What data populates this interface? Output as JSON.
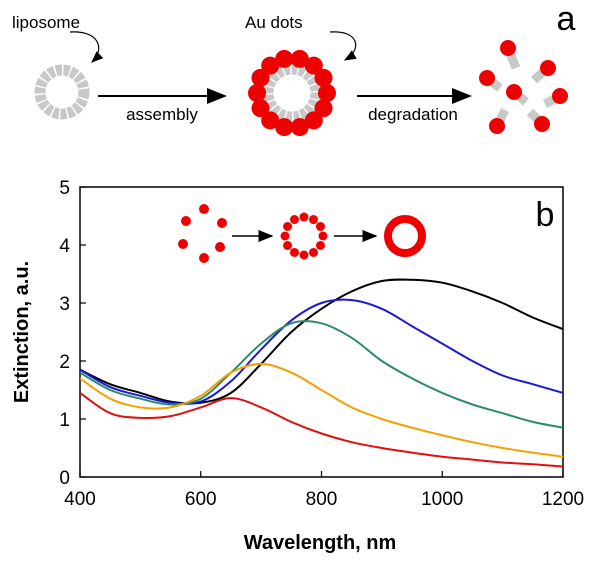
{
  "panel_a": {
    "label": "a",
    "liposome": "liposome",
    "au_dots": "Au dots",
    "assembly": "assembly",
    "degradation": "degradation"
  },
  "chart_data": {
    "type": "line",
    "label": "b",
    "x_label": "Wavelength, nm",
    "y_label": "Extinction, a.u.",
    "x": [
      400,
      450,
      500,
      550,
      600,
      650,
      700,
      750,
      800,
      850,
      900,
      950,
      1000,
      1050,
      1100,
      1150,
      1200
    ],
    "xlim": [
      400,
      1200
    ],
    "xticks": [
      400,
      600,
      800,
      1000,
      1200
    ],
    "ylim": [
      0,
      5
    ],
    "yticks": [
      0,
      1,
      2,
      3,
      4,
      5
    ],
    "grid": false,
    "series": [
      {
        "color": "#000000",
        "values": [
          1.85,
          1.6,
          1.45,
          1.3,
          1.28,
          1.45,
          1.95,
          2.5,
          2.9,
          3.2,
          3.38,
          3.4,
          3.35,
          3.2,
          3.0,
          2.75,
          2.55
        ]
      },
      {
        "color": "#1a1ad6",
        "values": [
          1.85,
          1.55,
          1.4,
          1.28,
          1.3,
          1.65,
          2.2,
          2.7,
          3.0,
          3.05,
          2.9,
          2.6,
          2.3,
          2.0,
          1.75,
          1.6,
          1.45
        ]
      },
      {
        "color": "#2e8b6a",
        "values": [
          1.8,
          1.5,
          1.35,
          1.25,
          1.35,
          1.8,
          2.3,
          2.65,
          2.65,
          2.4,
          2.0,
          1.7,
          1.45,
          1.25,
          1.1,
          0.95,
          0.85
        ]
      },
      {
        "color": "#f5a000",
        "values": [
          1.7,
          1.35,
          1.2,
          1.2,
          1.4,
          1.8,
          1.95,
          1.8,
          1.5,
          1.2,
          1.0,
          0.85,
          0.72,
          0.6,
          0.5,
          0.42,
          0.35
        ]
      },
      {
        "color": "#e01010",
        "values": [
          1.45,
          1.1,
          1.02,
          1.05,
          1.2,
          1.36,
          1.2,
          0.95,
          0.75,
          0.6,
          0.5,
          0.42,
          0.35,
          0.3,
          0.25,
          0.22,
          0.18
        ]
      }
    ]
  }
}
